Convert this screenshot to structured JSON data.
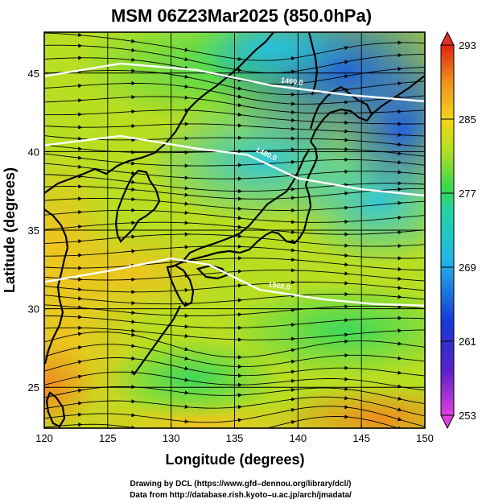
{
  "title": "MSM 06Z23Mar2025 (850.0hPa)",
  "x_axis": {
    "label": "Longitude (degrees)",
    "ticks": [
      "120",
      "125",
      "130",
      "135",
      "140",
      "145",
      "150"
    ],
    "range": [
      120,
      150
    ]
  },
  "y_axis": {
    "label": "Latitude  (degrees)",
    "ticks": [
      "25",
      "30",
      "35",
      "40",
      "45"
    ],
    "range": [
      22.4,
      47.6
    ]
  },
  "colorbar": {
    "ticks": [
      "253",
      "261",
      "269",
      "277",
      "285",
      "293"
    ],
    "range": [
      253,
      293
    ],
    "units_hint": "K"
  },
  "contour_labels": [
    "1460.0",
    "1480.0",
    "1500.0"
  ],
  "credits": {
    "line1": "Drawing by DCL (https://www.gfd–dennou.org/library/dcl/)",
    "line2": "Data from http://database.rish.kyoto–u.ac.jp/arch/jmadata/"
  },
  "colors": {
    "cold": "#1a4fd6",
    "cool": "#26c6e6",
    "mid": "#2fd36a",
    "warm": "#f0c020",
    "hot": "#f08a20",
    "contour": "#ffffff"
  },
  "chart_data": {
    "type": "heatmap",
    "title": "MSM 06Z23Mar2025 (850.0hPa)",
    "xlabel": "Longitude (degrees)",
    "ylabel": "Latitude  (degrees)",
    "xlim": [
      120,
      150
    ],
    "ylim": [
      22.4,
      47.6
    ],
    "colorbar_range": [
      253,
      293
    ],
    "temperature_field": [
      {
        "lat": 46,
        "lon": 122,
        "value": 279
      },
      {
        "lat": 46,
        "lon": 130,
        "value": 276
      },
      {
        "lat": 46,
        "lon": 138,
        "value": 268
      },
      {
        "lat": 46,
        "lon": 146,
        "value": 264
      },
      {
        "lat": 42,
        "lon": 122,
        "value": 282
      },
      {
        "lat": 42,
        "lon": 130,
        "value": 278
      },
      {
        "lat": 42,
        "lon": 138,
        "value": 272
      },
      {
        "lat": 42,
        "lon": 146,
        "value": 268
      },
      {
        "lat": 38,
        "lon": 122,
        "value": 284
      },
      {
        "lat": 38,
        "lon": 130,
        "value": 280
      },
      {
        "lat": 38,
        "lon": 138,
        "value": 274
      },
      {
        "lat": 38,
        "lon": 146,
        "value": 273
      },
      {
        "lat": 34,
        "lon": 122,
        "value": 285
      },
      {
        "lat": 34,
        "lon": 130,
        "value": 283
      },
      {
        "lat": 34,
        "lon": 138,
        "value": 279
      },
      {
        "lat": 34,
        "lon": 146,
        "value": 276
      },
      {
        "lat": 30,
        "lon": 122,
        "value": 285
      },
      {
        "lat": 30,
        "lon": 130,
        "value": 283
      },
      {
        "lat": 30,
        "lon": 138,
        "value": 280
      },
      {
        "lat": 30,
        "lon": 146,
        "value": 279
      },
      {
        "lat": 26,
        "lon": 122,
        "value": 286
      },
      {
        "lat": 26,
        "lon": 130,
        "value": 282
      },
      {
        "lat": 26,
        "lon": 138,
        "value": 281
      },
      {
        "lat": 26,
        "lon": 146,
        "value": 282
      },
      {
        "lat": 23,
        "lon": 122,
        "value": 288
      },
      {
        "lat": 23,
        "lon": 130,
        "value": 284
      },
      {
        "lat": 23,
        "lon": 138,
        "value": 284
      },
      {
        "lat": 23,
        "lon": 146,
        "value": 286
      }
    ],
    "height_contours": [
      {
        "label": "1460.0",
        "points": [
          [
            120,
            44.8
          ],
          [
            126,
            45.6
          ],
          [
            132,
            45.2
          ],
          [
            138,
            44.2
          ],
          [
            144,
            43.6
          ],
          [
            150,
            43.2
          ]
        ]
      },
      {
        "label": "1480.0",
        "points": [
          [
            120,
            40.4
          ],
          [
            126,
            41.0
          ],
          [
            132,
            40.2
          ],
          [
            136,
            39.8
          ],
          [
            140,
            38.3
          ],
          [
            145,
            37.6
          ],
          [
            150,
            37.2
          ]
        ]
      },
      {
        "label": "1500.0",
        "points": [
          [
            120,
            31.7
          ],
          [
            125,
            32.4
          ],
          [
            130,
            33.2
          ],
          [
            133,
            32.8
          ],
          [
            137,
            31.2
          ],
          [
            142,
            30.6
          ],
          [
            146,
            30.3
          ],
          [
            150,
            30.2
          ]
        ]
      }
    ],
    "wind_vectors_dominant_direction": "west-to-east"
  }
}
